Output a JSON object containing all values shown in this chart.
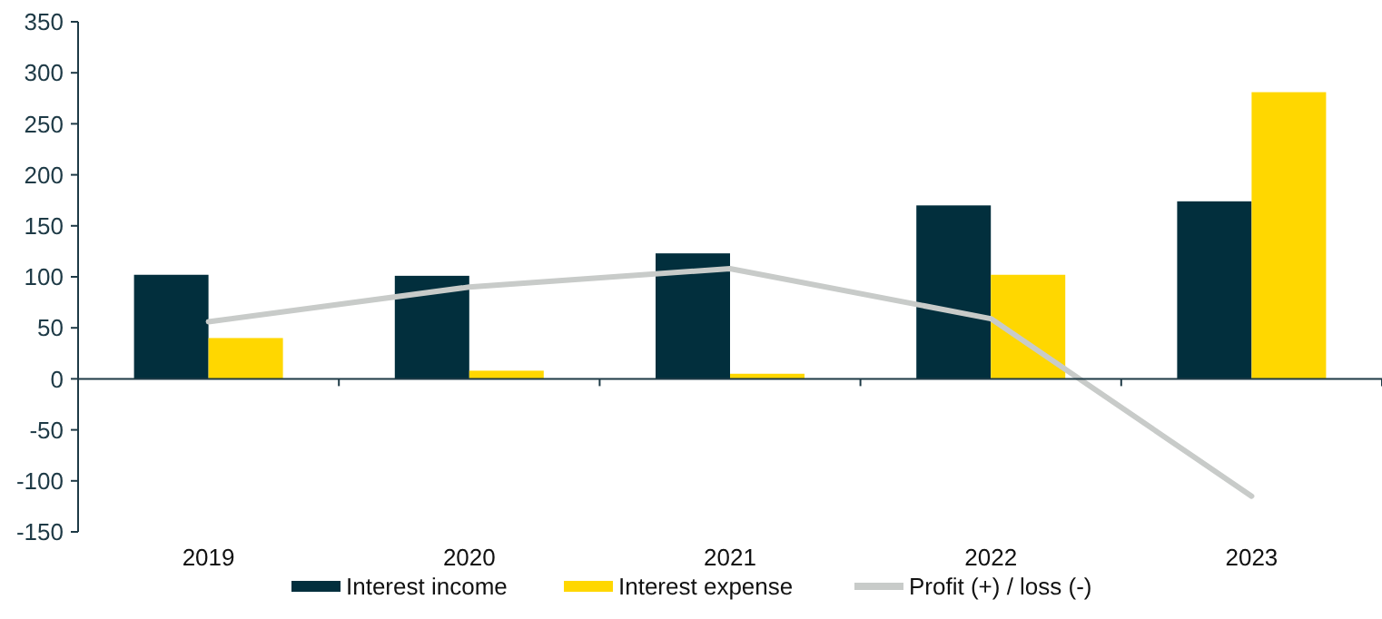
{
  "chart_data": {
    "type": "bar",
    "categories": [
      "2019",
      "2020",
      "2021",
      "2022",
      "2023"
    ],
    "series": [
      {
        "name": "Interest income",
        "color": "#022f3d",
        "values": [
          102,
          101,
          123,
          170,
          174
        ]
      },
      {
        "name": "Interest expense",
        "color": "#ffd700",
        "values": [
          40,
          8,
          5,
          102,
          281
        ]
      },
      {
        "name": "Profit (+) / loss (-)",
        "type": "line",
        "color": "#c8cbc9",
        "values": [
          56,
          90,
          108,
          59,
          -115
        ]
      }
    ],
    "ylim": [
      -150,
      350
    ],
    "yticks": [
      -150,
      -100,
      -50,
      0,
      50,
      100,
      150,
      200,
      250,
      300,
      350
    ],
    "legend": "bottom"
  }
}
